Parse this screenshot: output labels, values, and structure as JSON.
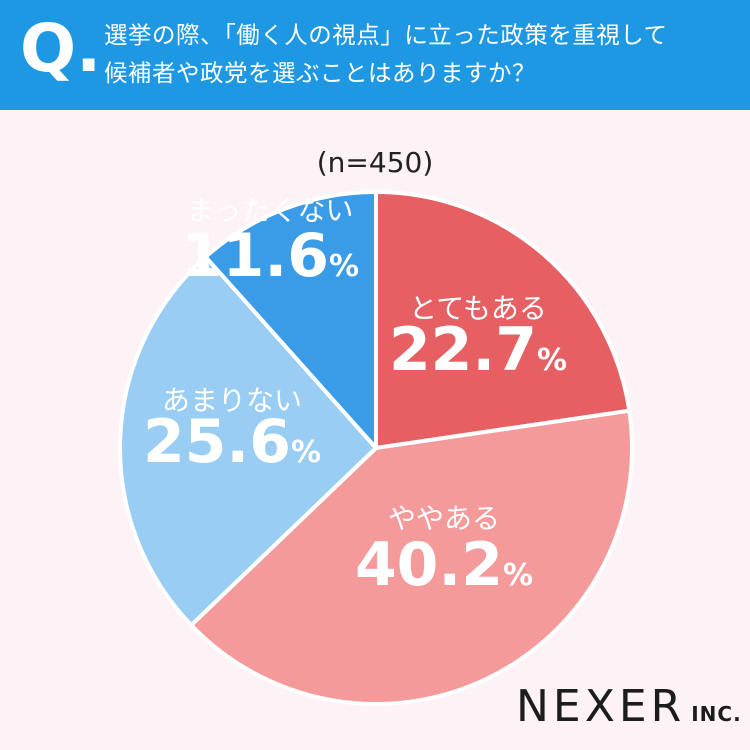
{
  "question": {
    "marker": "Q.",
    "line1": "選挙の際、「働く人の視点」に立った政策を重視して",
    "line2": "候補者や政党を選ぶことはありますか？"
  },
  "sample_size": "(n=450)",
  "logo": {
    "main": "NEXER",
    "sub": "INC."
  },
  "colors": {
    "header": "#1f98e4",
    "background": "#fdf2f5",
    "totemo_aru": "#e65f63",
    "yaya_aru": "#f49a9b",
    "amari_nai": "#9acdf4",
    "mattaku_nai": "#3a9be6"
  },
  "chart_data": {
    "type": "pie",
    "start": "12 o'clock",
    "direction": "clockwise",
    "slices": [
      {
        "label": "とてもある",
        "value": 22.7,
        "value_text": "22.7",
        "color": "#e65f63"
      },
      {
        "label": "ややある",
        "value": 40.2,
        "value_text": "40.2",
        "color": "#f49a9b"
      },
      {
        "label": "あまりない",
        "value": 25.6,
        "value_text": "25.6",
        "color": "#9acdf4"
      },
      {
        "label": "まったくない",
        "value": 11.6,
        "value_text": "11.6",
        "color": "#3a9be6"
      }
    ],
    "unit": "%"
  }
}
